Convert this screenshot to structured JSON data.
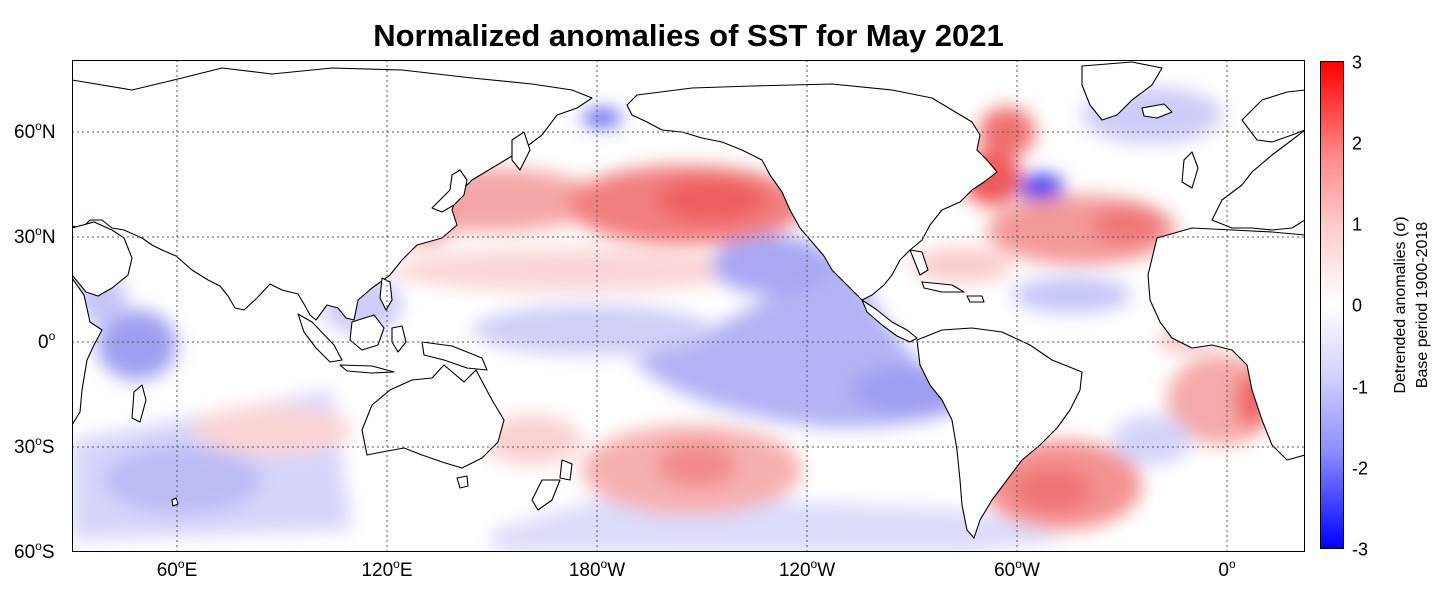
{
  "title": "Normalized anomalies of SST for May 2021",
  "y_axis": [
    {
      "deg": "60",
      "suffix": "N"
    },
    {
      "deg": "30",
      "suffix": "N"
    },
    {
      "deg": "0",
      "suffix": ""
    },
    {
      "deg": "30",
      "suffix": "S"
    },
    {
      "deg": "60",
      "suffix": "S"
    }
  ],
  "x_axis": [
    {
      "deg": "60",
      "suffix": "E"
    },
    {
      "deg": "120",
      "suffix": "E"
    },
    {
      "deg": "180",
      "suffix": "W"
    },
    {
      "deg": "120",
      "suffix": "W"
    },
    {
      "deg": "60",
      "suffix": "W"
    },
    {
      "deg": "0",
      "suffix": ""
    }
  ],
  "colorbar": {
    "ticks": [
      "3",
      "2",
      "1",
      "0",
      "-1",
      "-2",
      "-3"
    ],
    "label_line1": "Detrended anomalies (σ)",
    "label_line2": "Base period 1900-2018",
    "colors": {
      "positive": "#ff0000",
      "neutral": "#ffffff",
      "negative": "#0000ff"
    }
  },
  "sst_anomalies": [
    {
      "region": "North Pacific (Kuroshio extension)",
      "anomaly": 1.5
    },
    {
      "region": "Northeast Pacific",
      "anomaly": 1.8
    },
    {
      "region": "Eastern tropical Pacific",
      "anomaly": -1.2
    },
    {
      "region": "Northwest Atlantic (Gulf Stream)",
      "anomaly": 2.2
    },
    {
      "region": "North Atlantic off Newfoundland",
      "anomaly": -2.0
    },
    {
      "region": "Subtropical North Atlantic",
      "anomaly": 1.3
    },
    {
      "region": "Southwest Atlantic",
      "anomaly": 1.4
    },
    {
      "region": "South Pacific",
      "anomaly": 1.0
    },
    {
      "region": "Southeast Atlantic off Angola",
      "anomaly": 1.8
    },
    {
      "region": "Western Indian Ocean",
      "anomaly": -1.2
    },
    {
      "region": "Bering Strait",
      "anomaly": -2.5
    }
  ]
}
